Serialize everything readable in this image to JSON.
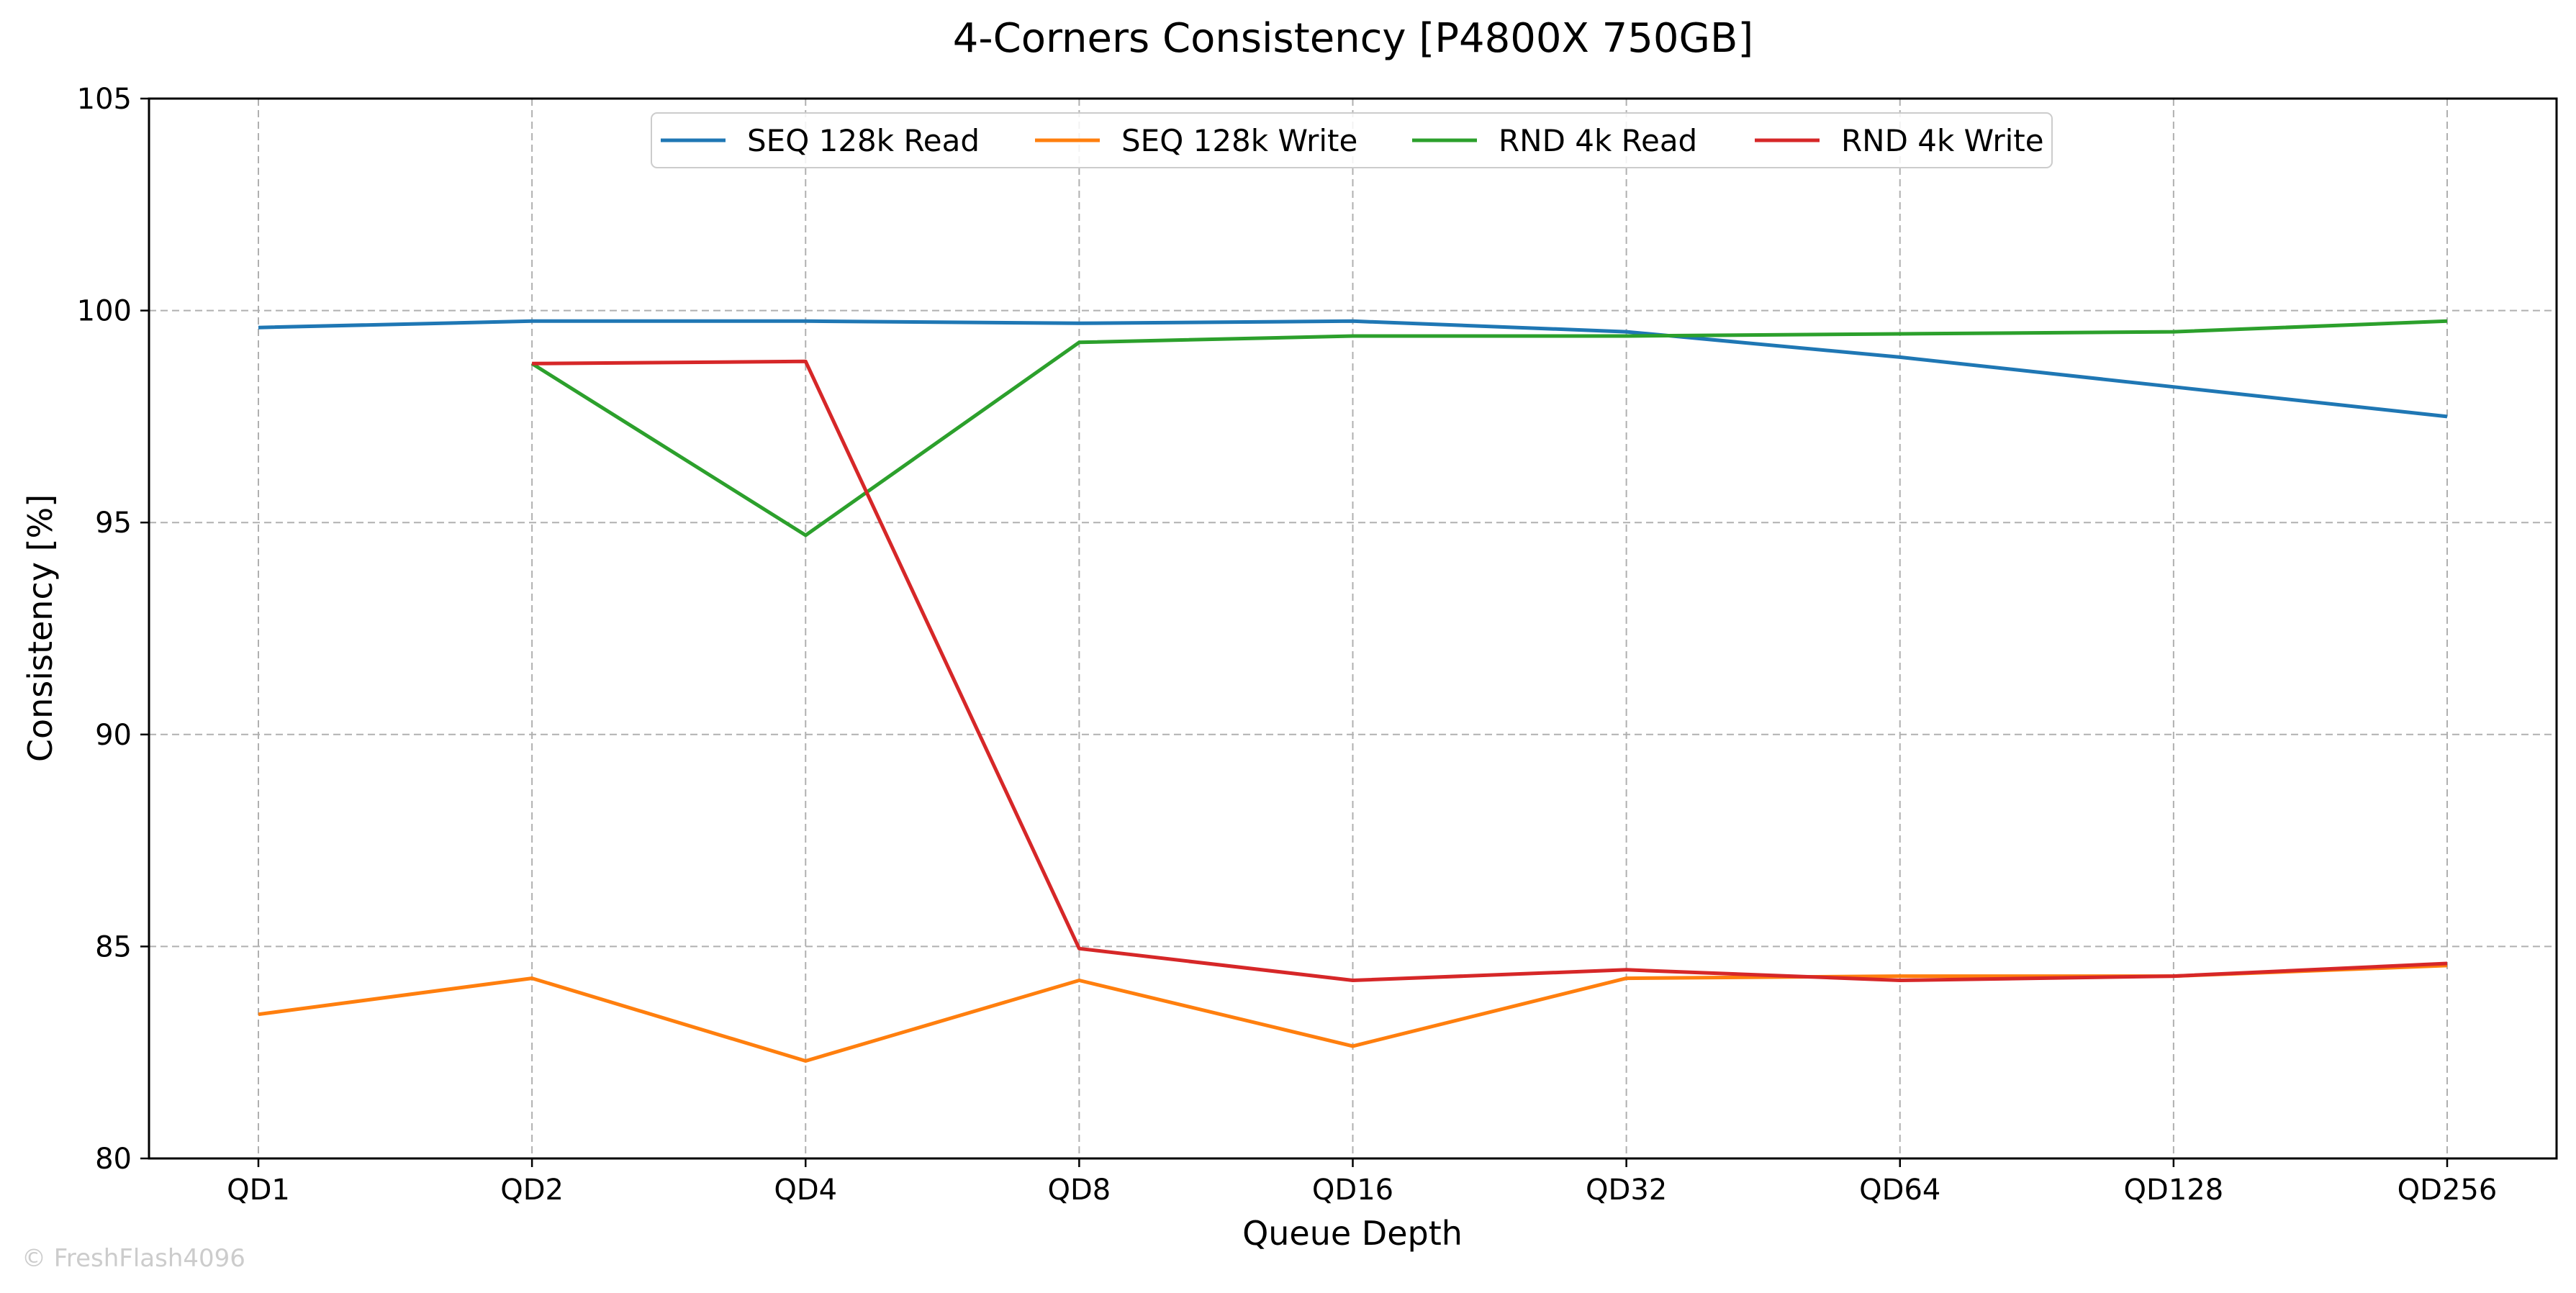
{
  "chart_data": {
    "type": "line",
    "title": "4-Corners Consistency [P4800X 750GB]",
    "xlabel": "Queue Depth",
    "ylabel": "Consistency [%]",
    "categories": [
      "QD1",
      "QD2",
      "QD4",
      "QD8",
      "QD16",
      "QD32",
      "QD64",
      "QD128",
      "QD256"
    ],
    "ylim": [
      80,
      105
    ],
    "yticks": [
      "80",
      "85",
      "90",
      "95",
      "100",
      "105"
    ],
    "grid": true,
    "legend_position": "top-center",
    "series": [
      {
        "name": "SEQ 128k Read",
        "color": "#1f77b4",
        "values": [
          99.6,
          99.75,
          99.75,
          99.7,
          99.75,
          99.5,
          98.9,
          98.2,
          97.5
        ]
      },
      {
        "name": "SEQ 128k Write",
        "color": "#ff7f0e",
        "values": [
          83.4,
          84.25,
          82.3,
          84.2,
          82.65,
          84.25,
          84.3,
          84.3,
          84.55
        ]
      },
      {
        "name": "RND 4k Read",
        "color": "#2ca02c",
        "values": [
          null,
          98.75,
          94.7,
          99.25,
          99.4,
          99.4,
          99.45,
          99.5,
          99.75
        ]
      },
      {
        "name": "RND 4k Write",
        "color": "#d62728",
        "values": [
          null,
          98.75,
          98.8,
          84.95,
          84.2,
          84.45,
          84.2,
          84.3,
          84.6
        ]
      }
    ]
  },
  "watermark": "© FreshFlash4096"
}
